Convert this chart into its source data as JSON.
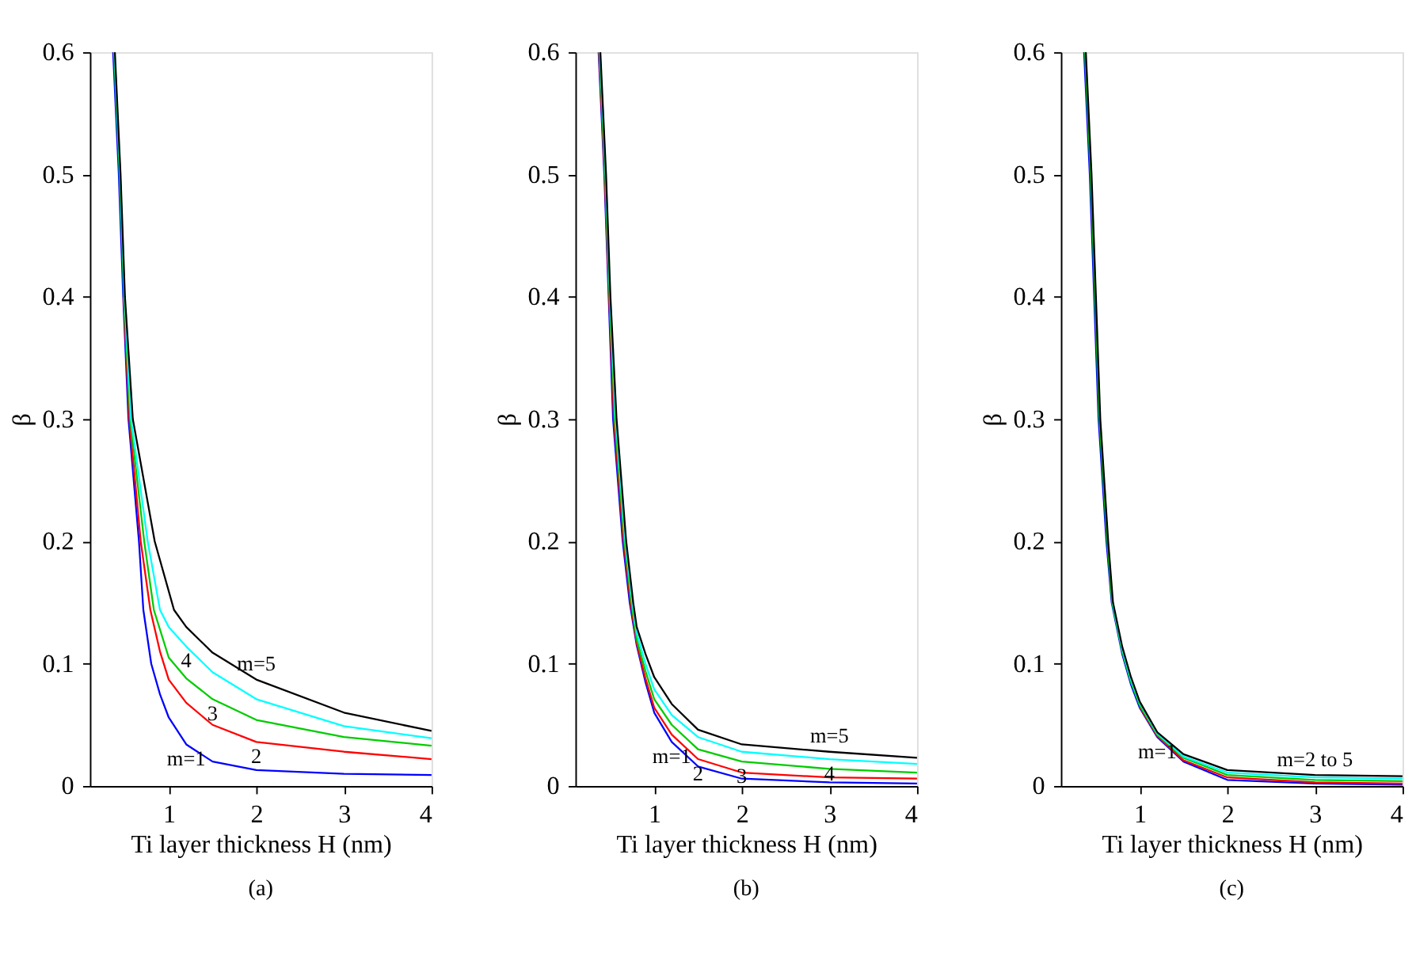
{
  "chart_data": [
    {
      "type": "line",
      "title": "(a)",
      "xlabel": "Ti layer thickness H (nm)",
      "ylabel": "β",
      "xlim": [
        0.1,
        4
      ],
      "ylim": [
        0,
        0.6
      ],
      "xticks": [
        1,
        2,
        3,
        4
      ],
      "yticks": [
        0,
        0.1,
        0.2,
        0.3,
        0.4,
        0.5,
        0.6
      ],
      "grid": false,
      "legend": false,
      "marker": "none",
      "line_style": "solid",
      "series": [
        {
          "color": "#0000ff",
          "x": [
            0.365,
            0.43,
            0.48,
            0.54,
            0.66,
            0.71,
            0.8,
            0.9,
            1,
            1.2,
            1.5,
            2,
            3,
            4
          ],
          "values": [
            0.6,
            0.5,
            0.4,
            0.3,
            0.2,
            0.144,
            0.1,
            0.075,
            0.056,
            0.034,
            0.02,
            0.013,
            0.01,
            0.009
          ]
        },
        {
          "color": "#ff0000",
          "x": [
            0.485,
            0.55,
            0.68,
            0.79,
            0.9,
            1,
            1.2,
            1.5,
            2,
            3,
            4
          ],
          "values": [
            0.4,
            0.3,
            0.2,
            0.144,
            0.11,
            0.087,
            0.068,
            0.05,
            0.036,
            0.028,
            0.022
          ]
        },
        {
          "color": "#00cc00",
          "x": [
            0.375,
            0.44,
            0.49,
            0.56,
            0.72,
            0.83,
            1,
            1.2,
            1.5,
            2,
            3,
            4
          ],
          "values": [
            0.6,
            0.5,
            0.4,
            0.3,
            0.2,
            0.144,
            0.105,
            0.088,
            0.071,
            0.054,
            0.04,
            0.033
          ]
        },
        {
          "color": "#00ffff",
          "x": [
            0.38,
            0.445,
            0.495,
            0.57,
            0.76,
            0.9,
            1,
            1.2,
            1.5,
            2,
            3,
            4
          ],
          "values": [
            0.6,
            0.5,
            0.4,
            0.3,
            0.2,
            0.144,
            0.13,
            0.114,
            0.093,
            0.071,
            0.049,
            0.039
          ]
        },
        {
          "color": "#000000",
          "x": [
            0.385,
            0.45,
            0.5,
            0.59,
            0.84,
            1.06,
            1.2,
            1.5,
            2,
            3,
            4
          ],
          "values": [
            0.6,
            0.5,
            0.4,
            0.3,
            0.2,
            0.144,
            0.13,
            0.109,
            0.087,
            0.06,
            0.045
          ]
        }
      ],
      "annotations": [
        {
          "text": "m=5",
          "x": 2,
          "y": 0.087
        },
        {
          "text": "4",
          "x": 1.2,
          "y": 0.114
        },
        {
          "text": "3",
          "x": 1.5,
          "y": 0.071
        },
        {
          "text": "2",
          "x": 2,
          "y": 0.036
        },
        {
          "text": "m=1",
          "x": 1.2,
          "y": 0.034
        }
      ]
    },
    {
      "type": "line",
      "title": "(b)",
      "xlabel": "Ti layer thickness H (nm)",
      "ylabel": "β",
      "xlim": [
        0.1,
        4
      ],
      "ylim": [
        0,
        0.6
      ],
      "xticks": [
        1,
        2,
        3,
        4
      ],
      "yticks": [
        0,
        0.1,
        0.2,
        0.3,
        0.4,
        0.5,
        0.6
      ],
      "grid": false,
      "legend": false,
      "marker": "none",
      "line_style": "solid",
      "series": [
        {
          "color": "#0000ff",
          "x": [
            0.365,
            0.43,
            0.48,
            0.53,
            0.64,
            0.72,
            0.8,
            0.9,
            1,
            1.2,
            1.5,
            2,
            3,
            4
          ],
          "values": [
            0.6,
            0.5,
            0.4,
            0.3,
            0.2,
            0.15,
            0.115,
            0.085,
            0.06,
            0.036,
            0.016,
            0.006,
            0.003,
            0.002
          ]
        },
        {
          "color": "#ff0000",
          "x": [
            0.37,
            0.435,
            0.485,
            0.54,
            0.65,
            0.73,
            0.8,
            0.9,
            1,
            1.2,
            1.5,
            2,
            3,
            4
          ],
          "values": [
            0.6,
            0.5,
            0.4,
            0.3,
            0.2,
            0.15,
            0.117,
            0.088,
            0.064,
            0.042,
            0.022,
            0.011,
            0.007,
            0.006
          ]
        },
        {
          "color": "#00cc00",
          "x": [
            0.375,
            0.44,
            0.49,
            0.55,
            0.66,
            0.74,
            0.8,
            0.9,
            1,
            1.2,
            1.5,
            2,
            3,
            4
          ],
          "values": [
            0.6,
            0.5,
            0.4,
            0.3,
            0.2,
            0.15,
            0.12,
            0.094,
            0.071,
            0.05,
            0.03,
            0.02,
            0.014,
            0.011
          ]
        },
        {
          "color": "#00ffff",
          "x": [
            0.38,
            0.445,
            0.495,
            0.56,
            0.67,
            0.75,
            0.8,
            0.9,
            1,
            1.2,
            1.5,
            2,
            3,
            4
          ],
          "values": [
            0.6,
            0.5,
            0.4,
            0.3,
            0.2,
            0.15,
            0.125,
            0.1,
            0.079,
            0.058,
            0.04,
            0.028,
            0.022,
            0.018
          ]
        },
        {
          "color": "#000000",
          "x": [
            0.385,
            0.45,
            0.5,
            0.57,
            0.68,
            0.76,
            0.8,
            0.9,
            1,
            1.2,
            1.5,
            2,
            3,
            4
          ],
          "values": [
            0.6,
            0.5,
            0.4,
            0.3,
            0.2,
            0.15,
            0.13,
            0.108,
            0.089,
            0.067,
            0.046,
            0.034,
            0.028,
            0.023
          ]
        }
      ],
      "annotations": [
        {
          "text": "m=1",
          "x": 1.2,
          "y": 0.036
        },
        {
          "text": "2",
          "x": 1.5,
          "y": 0.022
        },
        {
          "text": "3",
          "x": 2,
          "y": 0.02
        },
        {
          "text": "4",
          "x": 3,
          "y": 0.022
        },
        {
          "text": "m=5",
          "x": 3,
          "y": 0.028
        }
      ]
    },
    {
      "type": "line",
      "title": "(c)",
      "xlabel": "Ti layer thickness H (nm)",
      "ylabel": "β",
      "xlim": [
        0.1,
        4
      ],
      "ylim": [
        0,
        0.6
      ],
      "xticks": [
        1,
        2,
        3,
        4
      ],
      "yticks": [
        0,
        0.1,
        0.2,
        0.3,
        0.4,
        0.5,
        0.6
      ],
      "grid": false,
      "legend": false,
      "marker": "none",
      "line_style": "solid",
      "series": [
        {
          "color": "#0000ff",
          "x": [
            0.365,
            0.43,
            0.48,
            0.53,
            0.62,
            0.68,
            0.8,
            0.9,
            1,
            1.2,
            1.5,
            2,
            3,
            4
          ],
          "values": [
            0.6,
            0.5,
            0.4,
            0.3,
            0.2,
            0.15,
            0.108,
            0.083,
            0.064,
            0.04,
            0.02,
            0.005,
            0.002,
            0.001
          ]
        },
        {
          "color": "#ff0000",
          "x": [
            1,
            1.2,
            1.5,
            2,
            3,
            4
          ],
          "values": [
            0.065,
            0.041,
            0.021,
            0.007,
            0.003,
            0.002
          ]
        },
        {
          "color": "#00cc00",
          "x": [
            0.375,
            0.44,
            0.49,
            0.54,
            0.63,
            0.685,
            0.8,
            0.9,
            1,
            1.2,
            1.5,
            2,
            3,
            4
          ],
          "values": [
            0.6,
            0.5,
            0.4,
            0.3,
            0.2,
            0.15,
            0.11,
            0.085,
            0.066,
            0.042,
            0.023,
            0.009,
            0.005,
            0.004
          ]
        },
        {
          "color": "#00ffff",
          "x": [
            0.69,
            0.8,
            0.9,
            1,
            1.2,
            1.5,
            2,
            3,
            4
          ],
          "values": [
            0.15,
            0.112,
            0.087,
            0.068,
            0.043,
            0.024,
            0.011,
            0.007,
            0.006
          ]
        },
        {
          "color": "#000000",
          "x": [
            0.385,
            0.45,
            0.5,
            0.55,
            0.64,
            0.695,
            0.8,
            0.9,
            1,
            1.2,
            1.5,
            2,
            3,
            4
          ],
          "values": [
            0.6,
            0.5,
            0.4,
            0.3,
            0.2,
            0.15,
            0.114,
            0.089,
            0.069,
            0.044,
            0.026,
            0.013,
            0.009,
            0.008
          ]
        }
      ],
      "annotations": [
        {
          "text": "m=1",
          "x": 1.2,
          "y": 0.04
        },
        {
          "text": "m=2 to 5",
          "x": 3,
          "y": 0.009
        }
      ]
    }
  ]
}
